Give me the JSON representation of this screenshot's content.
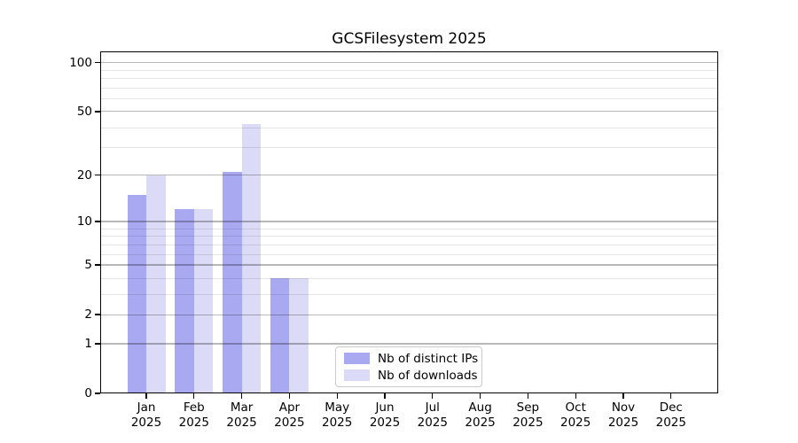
{
  "title": "GCSFilesystem 2025",
  "chart_data": {
    "type": "bar",
    "title": "GCSFilesystem 2025",
    "categories": [
      "Jan",
      "Feb",
      "Mar",
      "Apr",
      "May",
      "Jun",
      "Jul",
      "Aug",
      "Sep",
      "Oct",
      "Nov",
      "Dec"
    ],
    "category_year": "2025",
    "series": [
      {
        "name": "Nb of distinct IPs",
        "color": "#a9a9f2",
        "values": [
          15,
          12,
          21,
          4,
          0,
          0,
          0,
          0,
          0,
          0,
          0,
          0
        ]
      },
      {
        "name": "Nb of downloads",
        "color": "#dbdbf7",
        "values": [
          20,
          12,
          42,
          4,
          0,
          0,
          0,
          0,
          0,
          0,
          0,
          0
        ]
      }
    ],
    "xlabel": "",
    "ylabel": "",
    "y_scale": "log10(value+1)",
    "y_major_ticks": [
      0,
      1,
      2,
      5,
      10,
      20,
      50,
      100
    ],
    "y_minor_ticks": [
      3,
      4,
      6,
      7,
      8,
      9,
      30,
      40,
      60,
      70,
      80,
      90
    ],
    "ylim": [
      0,
      117
    ],
    "grid": true,
    "grid_over_bars": true,
    "legend_position": "lower center"
  },
  "colors": {
    "background": "#ffffff",
    "spine": "#000000",
    "major_grid": "rgba(0,0,0,0.28)",
    "minor_grid": "rgba(0,0,0,0.10)",
    "legend_border": "#cbcbcb"
  }
}
